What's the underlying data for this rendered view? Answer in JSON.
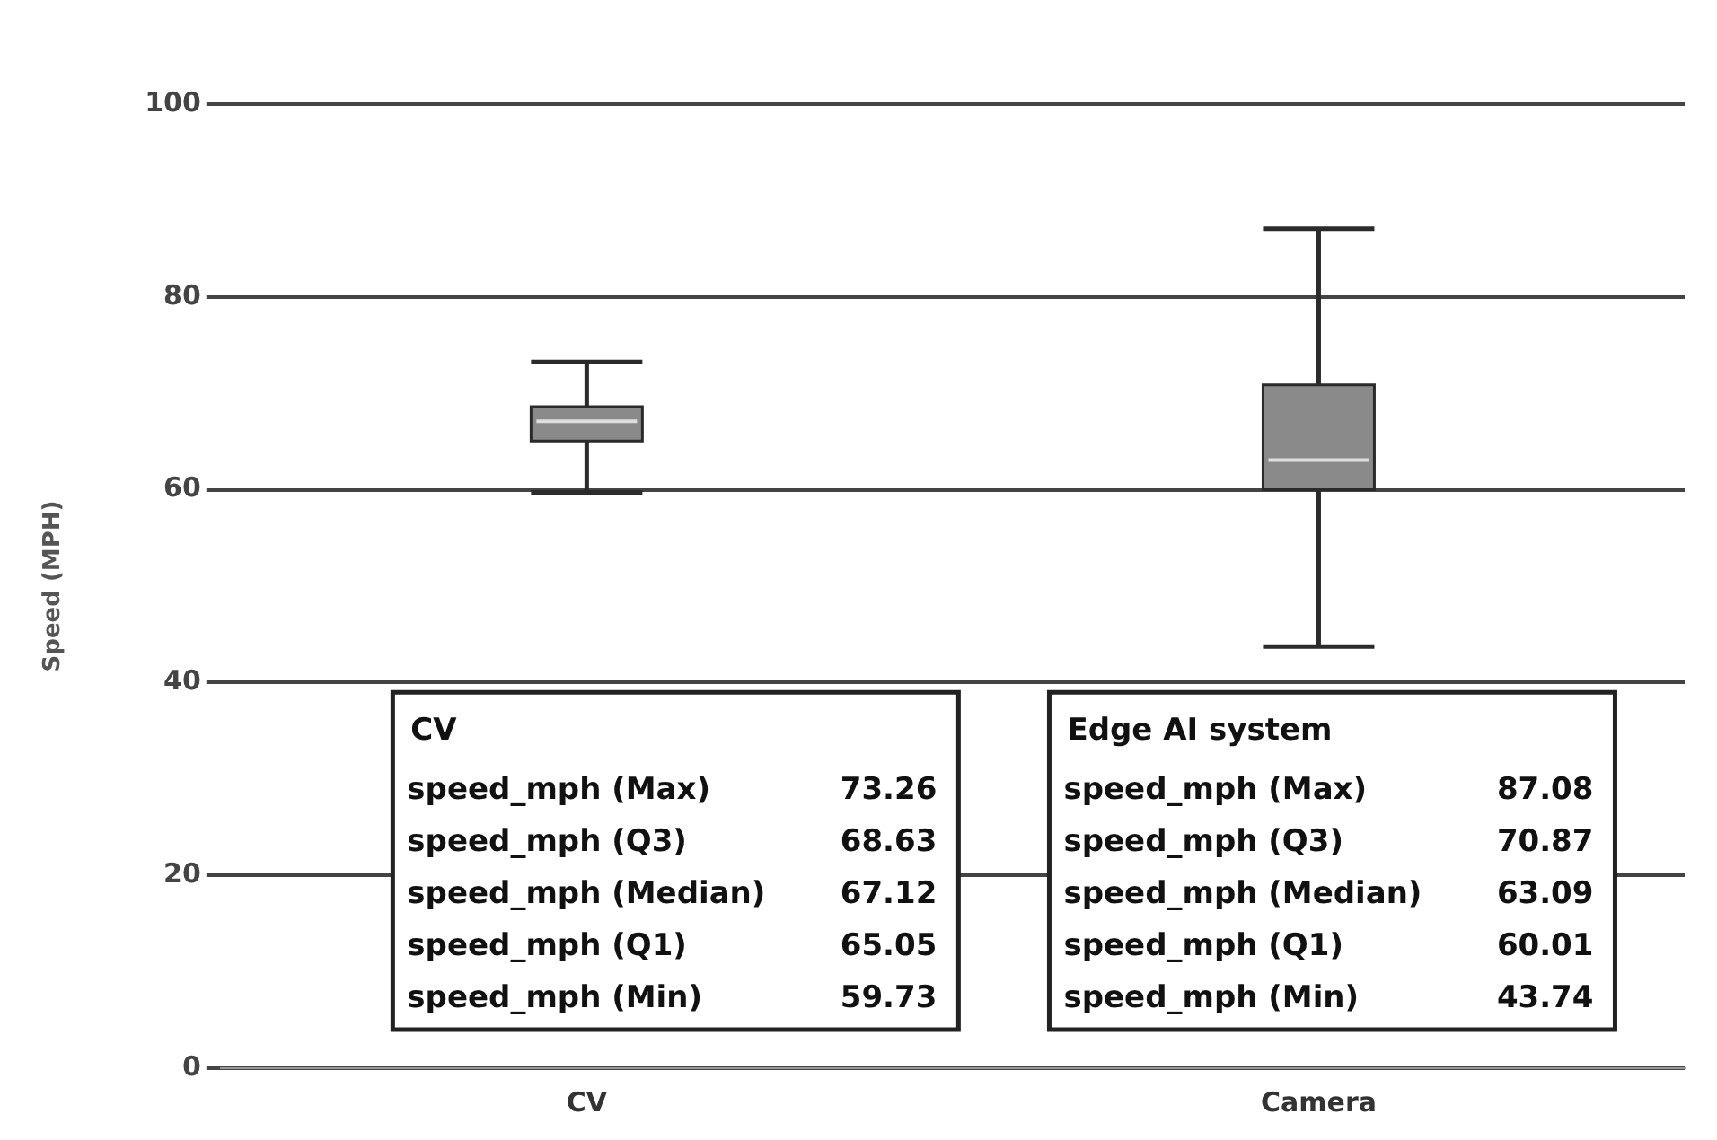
{
  "chart_data": {
    "type": "box",
    "ylabel": "Speed (MPH)",
    "categories": [
      "CV",
      "Camera"
    ],
    "boxes": [
      {
        "low": 59.73,
        "q1": 65.05,
        "median": 67.12,
        "q3": 68.63,
        "high": 73.26
      },
      {
        "low": 43.74,
        "q1": 60.01,
        "median": 63.09,
        "q3": 70.87,
        "high": 87.08
      }
    ],
    "color": "#8a8a8a",
    "ylim": [
      0,
      100
    ],
    "yticks": [
      0,
      20,
      40,
      60,
      80,
      100
    ],
    "grid": "y",
    "legend": false,
    "annotations": [
      "CV",
      "speed_mph (Max)",
      "73.26",
      "speed_mph (Q3)",
      "68.63",
      "speed_mph (Median)",
      "67.12",
      "speed_mph (Q1)",
      "65.05",
      "speed_mph (Min)",
      "59.73",
      "Edge AI system",
      "speed_mph (Max)",
      "87.08",
      "speed_mph (Q3)",
      "70.87",
      "speed_mph (Median)",
      "63.09",
      "speed_mph (Q1)",
      "60.01",
      "speed_mph (Min)",
      "43.74"
    ]
  }
}
